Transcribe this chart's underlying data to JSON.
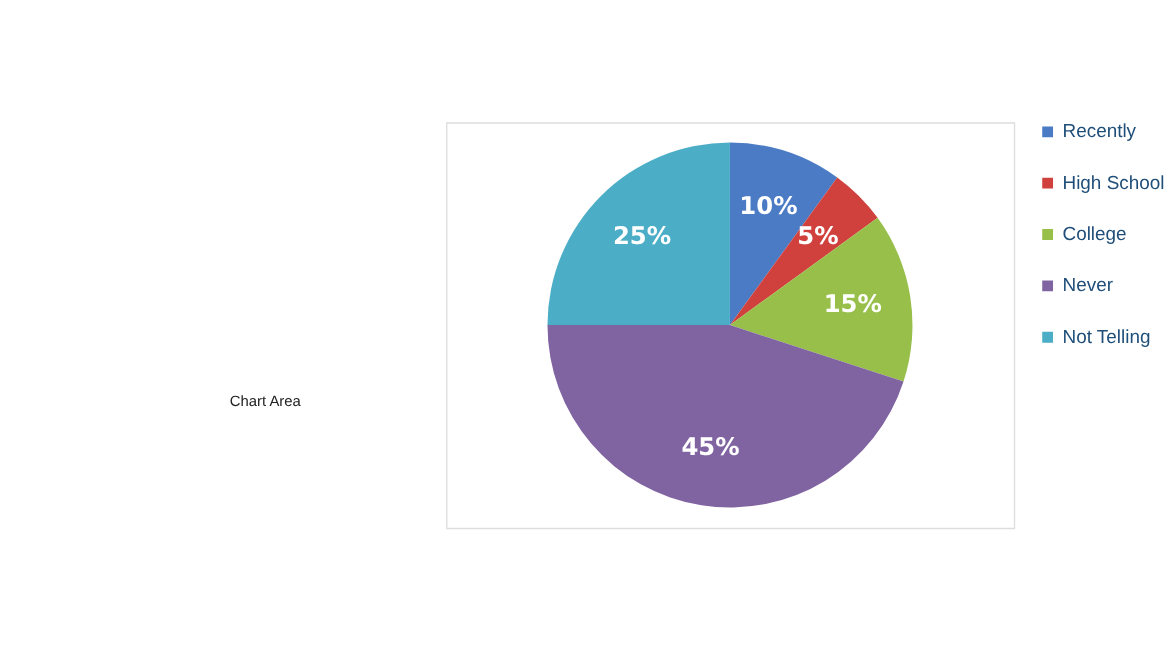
{
  "chart_data": {
    "type": "pie",
    "categories": [
      "Recently",
      "High School",
      "College",
      "Never",
      "Not Telling"
    ],
    "values": [
      10,
      5,
      15,
      45,
      25
    ],
    "colors": [
      "#4a7bc4",
      "#d0413e",
      "#97bf4a",
      "#8064a2",
      "#4badc6"
    ],
    "value_labels": [
      "10%",
      "5%",
      "15%",
      "45%",
      "25%"
    ],
    "legend": "right",
    "annotations": [
      "Chart Area"
    ]
  }
}
